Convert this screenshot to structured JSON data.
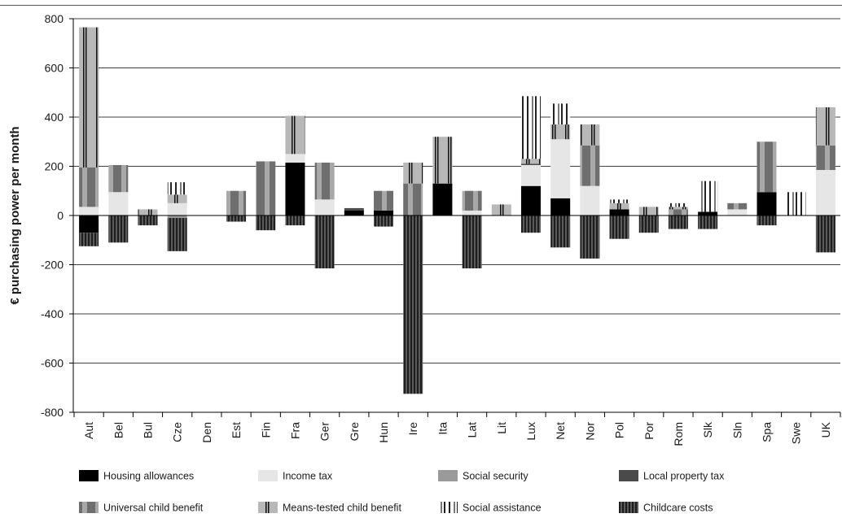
{
  "chart_data": {
    "type": "bar",
    "stacked": true,
    "title": "",
    "xlabel": "",
    "ylabel": "€ purchasing power per month",
    "ylim": [
      -800,
      800
    ],
    "yticks": [
      800,
      600,
      400,
      200,
      0,
      -200,
      -400,
      -600,
      -800
    ],
    "ytick_labels": [
      "800",
      "600",
      "400",
      "200",
      "0",
      "-200",
      "-400",
      "-600",
      "-800"
    ],
    "grid": "horizontal",
    "legend_position": "bottom",
    "categories": [
      "Aut",
      "Bel",
      "Bul",
      "Cze",
      "Den",
      "Est",
      "Fin",
      "Fra",
      "Ger",
      "Gre",
      "Hun",
      "Ire",
      "Ita",
      "Lat",
      "Lit",
      "Lux",
      "Net",
      "Nor",
      "Pol",
      "Por",
      "Rom",
      "Slk",
      "Sln",
      "Spa",
      "Swe",
      "UK"
    ],
    "series": [
      {
        "name": "Housing allowances",
        "pattern": "solid-black",
        "values": [
          -70,
          0,
          0,
          0,
          0,
          0,
          0,
          215,
          0,
          20,
          20,
          0,
          130,
          0,
          0,
          120,
          70,
          0,
          25,
          0,
          0,
          15,
          0,
          95,
          0,
          0
        ]
      },
      {
        "name": "Income tax",
        "pattern": "solid-light",
        "values": [
          35,
          95,
          0,
          50,
          0,
          0,
          0,
          35,
          65,
          0,
          0,
          0,
          0,
          20,
          0,
          85,
          240,
          120,
          0,
          0,
          0,
          0,
          25,
          0,
          0,
          185
        ]
      },
      {
        "name": "Social security",
        "pattern": "solid-mid",
        "values": [
          0,
          0,
          0,
          -10,
          0,
          0,
          0,
          0,
          0,
          0,
          0,
          0,
          0,
          0,
          0,
          0,
          0,
          0,
          0,
          0,
          0,
          0,
          0,
          0,
          0,
          0
        ]
      },
      {
        "name": "Local property tax",
        "pattern": "solid-dark",
        "values": [
          0,
          0,
          0,
          0,
          0,
          0,
          0,
          0,
          0,
          10,
          0,
          0,
          0,
          0,
          0,
          5,
          0,
          0,
          0,
          0,
          0,
          0,
          0,
          0,
          0,
          0
        ]
      },
      {
        "name": "Universal child benefit",
        "pattern": "universal",
        "values": [
          160,
          110,
          0,
          0,
          0,
          100,
          220,
          0,
          150,
          0,
          80,
          130,
          0,
          80,
          0,
          0,
          0,
          165,
          0,
          0,
          25,
          0,
          25,
          205,
          0,
          100
        ]
      },
      {
        "name": "Means-tested child benefit",
        "pattern": "means",
        "values": [
          570,
          0,
          25,
          35,
          0,
          0,
          0,
          155,
          0,
          0,
          0,
          85,
          190,
          0,
          45,
          20,
          60,
          85,
          25,
          35,
          10,
          0,
          0,
          0,
          0,
          155
        ]
      },
      {
        "name": "Social assistance",
        "pattern": "assistance",
        "values": [
          0,
          0,
          0,
          50,
          0,
          0,
          0,
          0,
          0,
          0,
          0,
          0,
          0,
          0,
          0,
          255,
          85,
          0,
          15,
          0,
          15,
          125,
          0,
          0,
          95,
          0
        ]
      },
      {
        "name": "Childcare costs",
        "pattern": "childcare",
        "values": [
          -55,
          -110,
          -40,
          -135,
          0,
          -25,
          -60,
          -40,
          -215,
          0,
          -45,
          -725,
          0,
          -215,
          0,
          -70,
          -130,
          -175,
          -95,
          -70,
          -55,
          -55,
          0,
          -40,
          0,
          -150
        ]
      }
    ]
  }
}
